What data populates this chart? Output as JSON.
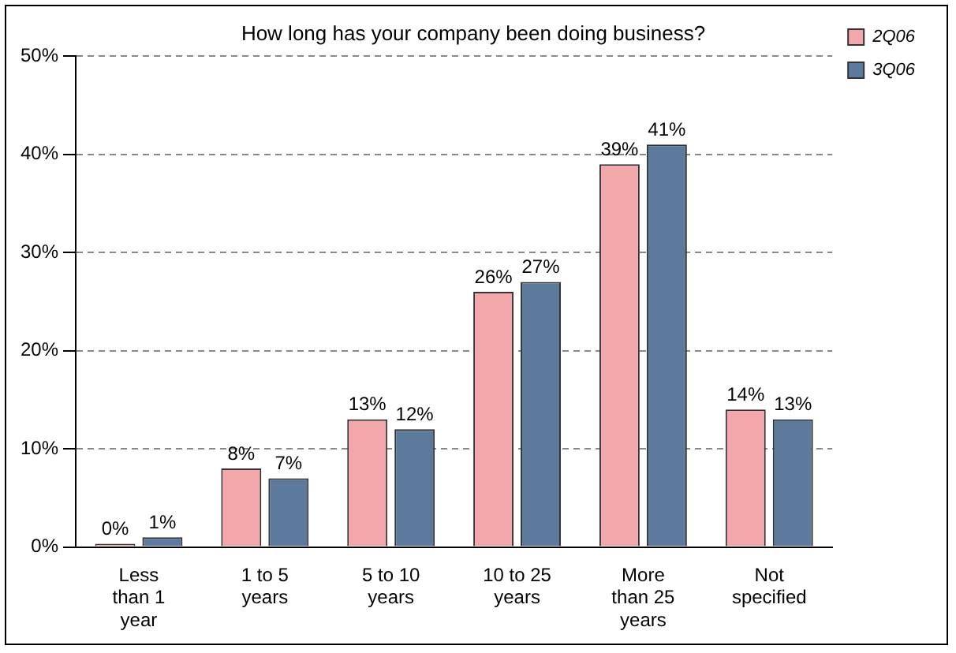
{
  "chart_data": {
    "type": "bar",
    "title": "How long has your company been doing business?",
    "categories": [
      "Less than 1 year",
      "1 to 5 years",
      "5 to 10 years",
      "10 to 25 years",
      "More than 25 years",
      "Not specified"
    ],
    "series": [
      {
        "name": "2Q06",
        "color": "#f2a7aa",
        "values": [
          0,
          8,
          13,
          26,
          39,
          14
        ],
        "value_labels": [
          "0%",
          "8%",
          "13%",
          "26%",
          "39%",
          "14%"
        ]
      },
      {
        "name": "3Q06",
        "color": "#5b7a9c",
        "values": [
          1,
          7,
          12,
          27,
          41,
          13
        ],
        "value_labels": [
          "1%",
          "7%",
          "12%",
          "27%",
          "41%",
          "13%"
        ]
      }
    ],
    "ylim": [
      0,
      50
    ],
    "yticks": [
      {
        "value": 0,
        "label": "0%"
      },
      {
        "value": 10,
        "label": "10%"
      },
      {
        "value": 20,
        "label": "20%"
      },
      {
        "value": 30,
        "label": "30%"
      },
      {
        "value": 40,
        "label": "40%"
      },
      {
        "value": 50,
        "label": "50%"
      }
    ],
    "grid": "y",
    "legend": "top right"
  }
}
